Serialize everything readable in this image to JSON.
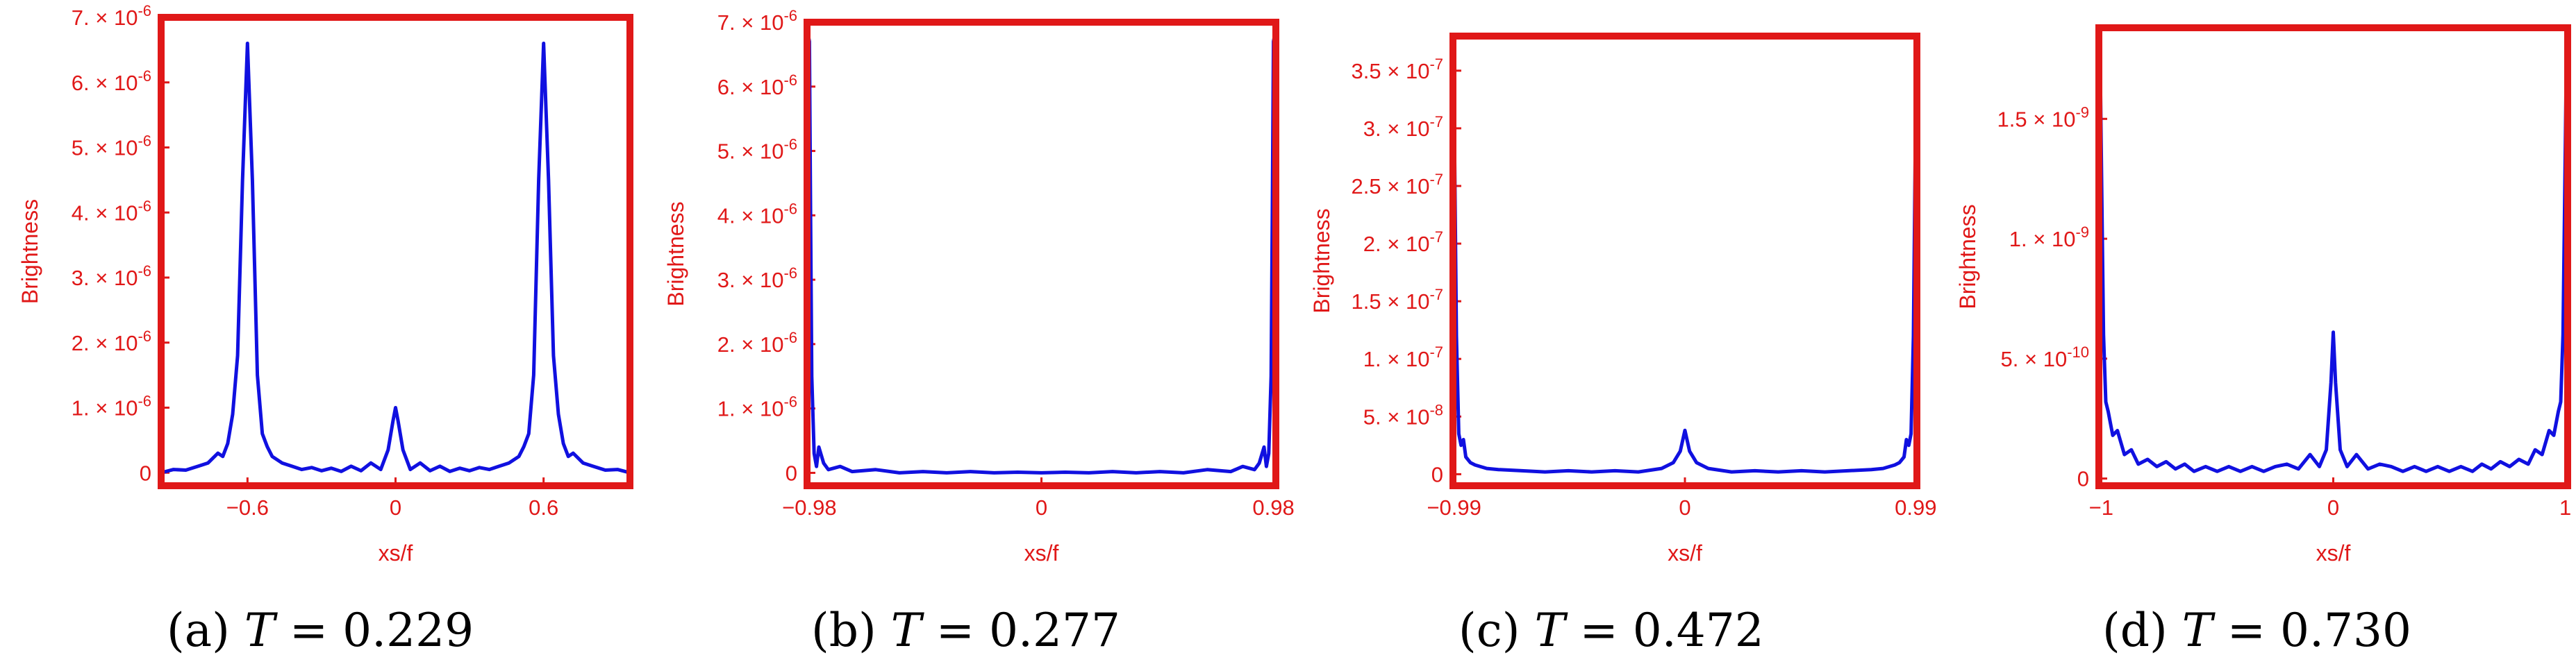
{
  "chart_data": [
    {
      "type": "line",
      "caption": {
        "prefix": "(a) ",
        "var": "T",
        "rest": " = 0.229"
      },
      "xlabel": "xs/f",
      "ylabel": "Brightness",
      "xlim": [
        -0.95,
        0.95
      ],
      "ylim": [
        -2e-07,
        7e-06
      ],
      "xticks": [
        {
          "v": -0.6,
          "label": "−0.6"
        },
        {
          "v": 0,
          "label": "0"
        },
        {
          "v": 0.6,
          "label": "0.6"
        }
      ],
      "yticks": [
        {
          "v": 0,
          "m": "0",
          "e": ""
        },
        {
          "v": 1e-06,
          "m": "1.",
          "e": "-6"
        },
        {
          "v": 2e-06,
          "m": "2.",
          "e": "-6"
        },
        {
          "v": 3e-06,
          "m": "3.",
          "e": "-6"
        },
        {
          "v": 4e-06,
          "m": "4.",
          "e": "-6"
        },
        {
          "v": 5e-06,
          "m": "5.",
          "e": "-6"
        },
        {
          "v": 6e-06,
          "m": "6.",
          "e": "-6"
        },
        {
          "v": 7e-06,
          "m": "7.",
          "e": "-6"
        }
      ],
      "series": [
        {
          "color": "#1010e0",
          "x": [
            -0.95,
            -0.9,
            -0.85,
            -0.8,
            -0.76,
            -0.72,
            -0.7,
            -0.68,
            -0.66,
            -0.64,
            -0.62,
            -0.6,
            -0.58,
            -0.56,
            -0.54,
            -0.52,
            -0.5,
            -0.46,
            -0.42,
            -0.38,
            -0.34,
            -0.3,
            -0.26,
            -0.22,
            -0.18,
            -0.14,
            -0.1,
            -0.06,
            -0.03,
            -0.01,
            0,
            0.01,
            0.03,
            0.06,
            0.1,
            0.14,
            0.18,
            0.22,
            0.26,
            0.3,
            0.34,
            0.38,
            0.42,
            0.46,
            0.5,
            0.52,
            0.54,
            0.56,
            0.58,
            0.6,
            0.62,
            0.64,
            0.66,
            0.68,
            0.7,
            0.72,
            0.76,
            0.8,
            0.85,
            0.9,
            0.95
          ],
          "y": [
            0,
            5e-08,
            4e-08,
            1e-07,
            1.5e-07,
            3e-07,
            2.5e-07,
            4.5e-07,
            9e-07,
            1.8e-06,
            4.5e-06,
            6.6e-06,
            4.5e-06,
            1.5e-06,
            6e-07,
            4e-07,
            2.5e-07,
            1.5e-07,
            1e-07,
            5e-08,
            8e-08,
            3e-08,
            7e-08,
            2e-08,
            1e-07,
            3e-08,
            1.5e-07,
            5e-08,
            3.5e-07,
            8e-07,
            1e-06,
            8e-07,
            3.5e-07,
            5e-08,
            1.5e-07,
            3e-08,
            1e-07,
            2e-08,
            7e-08,
            3e-08,
            8e-08,
            5e-08,
            1e-07,
            1.5e-07,
            2.5e-07,
            4e-07,
            6e-07,
            1.5e-06,
            4.5e-06,
            6.6e-06,
            4.5e-06,
            1.8e-06,
            9e-07,
            4.5e-07,
            2.5e-07,
            3e-07,
            1.5e-07,
            1e-07,
            4e-08,
            5e-08,
            0
          ]
        }
      ]
    },
    {
      "type": "line",
      "caption": {
        "prefix": "(b) ",
        "var": "T",
        "rest": " = 0.277"
      },
      "xlabel": "xs/f",
      "ylabel": "Brightness",
      "xlim": [
        -0.99,
        0.99
      ],
      "ylim": [
        -2e-07,
        7e-06
      ],
      "xticks": [
        {
          "v": -0.98,
          "label": "−0.98"
        },
        {
          "v": 0,
          "label": "0"
        },
        {
          "v": 0.98,
          "label": "0.98"
        }
      ],
      "yticks": [
        {
          "v": 0,
          "m": "0",
          "e": ""
        },
        {
          "v": 1e-06,
          "m": "1.",
          "e": "-6"
        },
        {
          "v": 2e-06,
          "m": "2.",
          "e": "-6"
        },
        {
          "v": 3e-06,
          "m": "3.",
          "e": "-6"
        },
        {
          "v": 4e-06,
          "m": "4.",
          "e": "-6"
        },
        {
          "v": 5e-06,
          "m": "5.",
          "e": "-6"
        },
        {
          "v": 6e-06,
          "m": "6.",
          "e": "-6"
        },
        {
          "v": 7e-06,
          "m": "7.",
          "e": "-6"
        }
      ],
      "series": [
        {
          "color": "#1010e0",
          "x": [
            -0.99,
            -0.985,
            -0.98,
            -0.975,
            -0.97,
            -0.96,
            -0.95,
            -0.94,
            -0.92,
            -0.9,
            -0.85,
            -0.8,
            -0.7,
            -0.6,
            -0.5,
            -0.4,
            -0.3,
            -0.2,
            -0.1,
            0,
            0.1,
            0.2,
            0.3,
            0.4,
            0.5,
            0.6,
            0.7,
            0.8,
            0.85,
            0.9,
            0.92,
            0.94,
            0.95,
            0.96,
            0.97,
            0.975,
            0.98,
            0.985,
            0.99
          ],
          "y": [
            5.7e-06,
            6.8e-06,
            6.7e-06,
            4e-06,
            1.5e-06,
            3e-07,
            1e-07,
            4e-07,
            1.5e-07,
            5e-08,
            1e-07,
            2e-08,
            5e-08,
            0,
            2e-08,
            0,
            2e-08,
            0,
            1e-08,
            0,
            1e-08,
            0,
            2e-08,
            0,
            2e-08,
            0,
            5e-08,
            2e-08,
            1e-07,
            5e-08,
            1.5e-07,
            4e-07,
            1e-07,
            3e-07,
            1.5e-06,
            4e-06,
            6.7e-06,
            6.8e-06,
            5.7e-06
          ]
        }
      ]
    },
    {
      "type": "line",
      "caption": {
        "prefix": "(c) ",
        "var": "T",
        "rest": " = 0.472"
      },
      "xlabel": "xs/f",
      "ylabel": "Brightness",
      "xlim": [
        -0.995,
        0.995
      ],
      "ylim": [
        -1e-08,
        3.8e-07
      ],
      "xticks": [
        {
          "v": -0.99,
          "label": "−0.99"
        },
        {
          "v": 0,
          "label": "0"
        },
        {
          "v": 0.99,
          "label": "0.99"
        }
      ],
      "yticks": [
        {
          "v": 0,
          "m": "0",
          "e": ""
        },
        {
          "v": 5e-08,
          "m": "5.",
          "e": "-8"
        },
        {
          "v": 1e-07,
          "m": "1.",
          "e": "-7"
        },
        {
          "v": 1.5e-07,
          "m": "1.5",
          "e": "-7"
        },
        {
          "v": 2e-07,
          "m": "2.",
          "e": "-7"
        },
        {
          "v": 2.5e-07,
          "m": "2.5",
          "e": "-7"
        },
        {
          "v": 3e-07,
          "m": "3.",
          "e": "-7"
        },
        {
          "v": 3.5e-07,
          "m": "3.5",
          "e": "-7"
        }
      ],
      "series": [
        {
          "color": "#1010e0",
          "x": [
            -0.995,
            -0.99,
            -0.98,
            -0.97,
            -0.96,
            -0.95,
            -0.94,
            -0.92,
            -0.9,
            -0.85,
            -0.8,
            -0.7,
            -0.6,
            -0.5,
            -0.4,
            -0.3,
            -0.2,
            -0.1,
            -0.05,
            -0.02,
            0,
            0.02,
            0.05,
            0.1,
            0.2,
            0.3,
            0.4,
            0.5,
            0.6,
            0.7,
            0.8,
            0.85,
            0.9,
            0.92,
            0.94,
            0.95,
            0.96,
            0.97,
            0.98,
            0.99,
            0.995
          ],
          "y": [
            3.6e-07,
            3.2e-07,
            1.2e-07,
            3.5e-08,
            2.5e-08,
            3e-08,
            1.5e-08,
            1e-08,
            8e-09,
            5e-09,
            4e-09,
            3e-09,
            2e-09,
            3e-09,
            2e-09,
            3e-09,
            2e-09,
            5e-09,
            1e-08,
            2e-08,
            3.8e-08,
            2e-08,
            1e-08,
            5e-09,
            2e-09,
            3e-09,
            2e-09,
            3e-09,
            2e-09,
            3e-09,
            4e-09,
            5e-09,
            8e-09,
            1e-08,
            1.5e-08,
            3e-08,
            2.5e-08,
            3.5e-08,
            1.2e-07,
            3.2e-07,
            3.6e-07
          ]
        }
      ]
    },
    {
      "type": "line",
      "caption": {
        "prefix": "(d) ",
        "var": "T",
        "rest": " = 0.730"
      },
      "xlabel": "xs/f",
      "ylabel": "Brightness",
      "xlim": [
        -1.01,
        1.01
      ],
      "ylim": [
        -3e-11,
        1.88e-09
      ],
      "xticks": [
        {
          "v": -1,
          "label": "−1"
        },
        {
          "v": 0,
          "label": "0"
        },
        {
          "v": 1,
          "label": "1"
        }
      ],
      "yticks": [
        {
          "v": 0,
          "m": "0",
          "e": ""
        },
        {
          "v": 5e-10,
          "m": "5.",
          "e": "-10"
        },
        {
          "v": 1e-09,
          "m": "1.",
          "e": "-9"
        },
        {
          "v": 1.5e-09,
          "m": "1.5",
          "e": "-9"
        }
      ],
      "series": [
        {
          "color": "#1010e0",
          "x": [
            -1.005,
            -1,
            -0.99,
            -0.98,
            -0.97,
            -0.95,
            -0.93,
            -0.9,
            -0.87,
            -0.84,
            -0.8,
            -0.76,
            -0.72,
            -0.68,
            -0.64,
            -0.6,
            -0.55,
            -0.5,
            -0.45,
            -0.4,
            -0.35,
            -0.3,
            -0.25,
            -0.2,
            -0.15,
            -0.1,
            -0.06,
            -0.03,
            -0.01,
            0,
            0.01,
            0.03,
            0.06,
            0.1,
            0.15,
            0.2,
            0.25,
            0.3,
            0.35,
            0.4,
            0.45,
            0.5,
            0.55,
            0.6,
            0.64,
            0.68,
            0.72,
            0.76,
            0.8,
            0.84,
            0.87,
            0.9,
            0.93,
            0.95,
            0.97,
            0.98,
            0.99,
            1,
            1.005
          ],
          "y": [
            1.8e-09,
            1.4e-09,
            6e-10,
            3.2e-10,
            2.8e-10,
            1.8e-10,
            2e-10,
            1e-10,
            1.2e-10,
            6e-11,
            8e-11,
            5e-11,
            7e-11,
            4e-11,
            6e-11,
            3e-11,
            5e-11,
            3e-11,
            5e-11,
            3e-11,
            5e-11,
            3e-11,
            5e-11,
            6e-11,
            4e-11,
            1e-10,
            5e-11,
            1.2e-10,
            4e-10,
            6.1e-10,
            4e-10,
            1.2e-10,
            5e-11,
            1e-10,
            4e-11,
            6e-11,
            5e-11,
            3e-11,
            5e-11,
            3e-11,
            5e-11,
            3e-11,
            5e-11,
            3e-11,
            6e-11,
            4e-11,
            7e-11,
            5e-11,
            8e-11,
            6e-11,
            1.2e-10,
            1e-10,
            2e-10,
            1.8e-10,
            2.8e-10,
            3.2e-10,
            6e-10,
            1.4e-09,
            1.8e-09
          ]
        }
      ]
    }
  ]
}
